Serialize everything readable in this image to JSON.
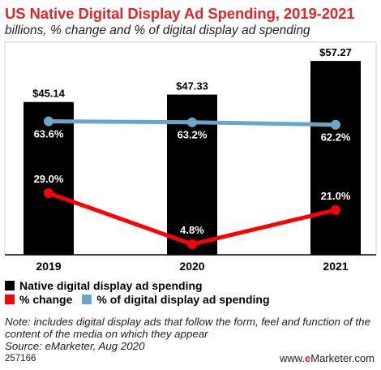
{
  "header": {
    "title": "US Native Digital Display Ad Spending, 2019-2021",
    "subtitle": "billions, % change and % of digital display ad spending"
  },
  "chart_data": {
    "type": "bar",
    "categories": [
      "2019",
      "2020",
      "2021"
    ],
    "bar_series": {
      "name": "Native digital display ad spending",
      "values": [
        45.14,
        47.33,
        57.27
      ],
      "labels": [
        "$45.14",
        "$47.33",
        "$57.27"
      ],
      "color": "#000000"
    },
    "line_series": [
      {
        "name": "% change",
        "values": [
          29.0,
          4.8,
          21.0
        ],
        "labels": [
          "29.0%",
          "4.8%",
          "21.0%"
        ],
        "color": "#ff0000"
      },
      {
        "name": "% of digital display ad spending",
        "values": [
          63.6,
          63.2,
          62.2
        ],
        "labels": [
          "63.6%",
          "63.2%",
          "62.2%"
        ],
        "color": "#6aa6c8"
      }
    ],
    "legend_position": "bottom-left",
    "grid": false
  },
  "note": "Note: includes digital display ads that follow the form, feel and function of the content of the media on which they appear",
  "source": "Source: eMarketer, Aug 2020",
  "footer": {
    "chart_id": "257166",
    "brand_prefix": "www.",
    "brand_accent": "e",
    "brand_suffix": "Marketer.com"
  }
}
